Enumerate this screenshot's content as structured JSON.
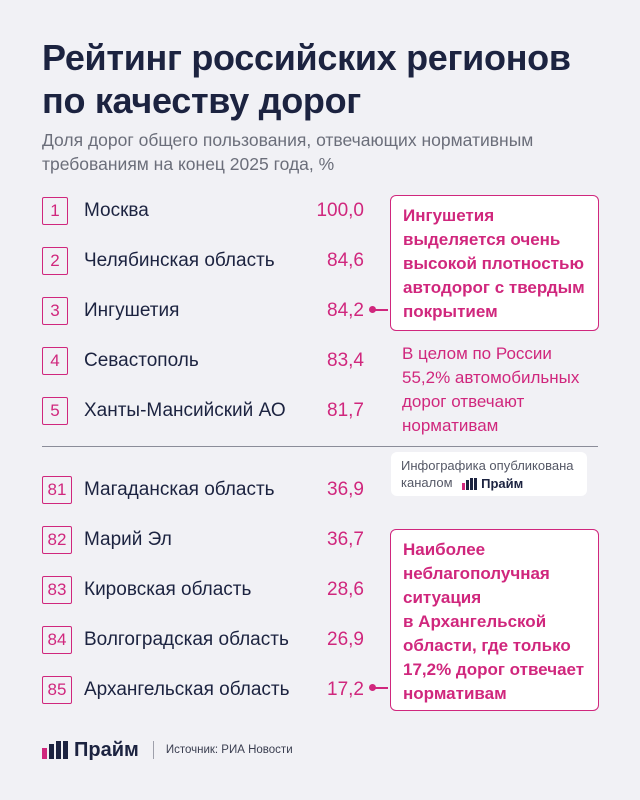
{
  "header": {
    "title_line1": "Рейтинг российских регионов",
    "title_line2": "по качеству дорог",
    "subtitle_line1": "Доля дорог общего пользования, отвечающих нормативным",
    "subtitle_line2": "требованиям на конец 2025 года, %"
  },
  "chart_data": {
    "type": "table",
    "title": "Рейтинг российских регионов по качеству дорог",
    "subtitle": "Доля дорог общего пользования, отвечающих нормативным требованиям на конец 2025 года, %",
    "top": [
      {
        "rank": "1",
        "region": "Москва",
        "value": "100,0"
      },
      {
        "rank": "2",
        "region": "Челябинская область",
        "value": "84,6"
      },
      {
        "rank": "3",
        "region": "Ингушетия",
        "value": "84,2"
      },
      {
        "rank": "4",
        "region": "Севастополь",
        "value": "83,4"
      },
      {
        "rank": "5",
        "region": "Ханты-Мансийский АО",
        "value": "81,7"
      }
    ],
    "bottom": [
      {
        "rank": "81",
        "region": "Магаданская область",
        "value": "36,9"
      },
      {
        "rank": "82",
        "region": "Марий Эл",
        "value": "36,7"
      },
      {
        "rank": "83",
        "region": "Кировская область",
        "value": "28,6"
      },
      {
        "rank": "84",
        "region": "Волгоградская область",
        "value": "26,9"
      },
      {
        "rank": "85",
        "region": "Архангельская область",
        "value": "17,2"
      }
    ]
  },
  "callouts": {
    "ingushetia_lines": [
      "Ингушетия",
      "выделяется очень",
      "высокой плотностью",
      "автодорог с твердым",
      "покрытием"
    ],
    "russia_lines": [
      "В целом по России",
      "55,2% автомобильных",
      "дорог отвечают",
      "нормативам"
    ],
    "arkhangelsk_lines": [
      "Наиболее",
      "неблагополучная",
      "ситуация",
      "в Архангельской",
      "области, где только",
      "17,2% дорог отвечает",
      "нормативам"
    ]
  },
  "published": {
    "line1": "Инфографика опубликована",
    "line2": "каналом",
    "brand": "Прайм"
  },
  "footer": {
    "brand": "Прайм",
    "source": "Источник: РИА Новости"
  },
  "colors": {
    "accent": "#d0277d",
    "navy": "#1c2340",
    "background": "#f1f1f5"
  }
}
